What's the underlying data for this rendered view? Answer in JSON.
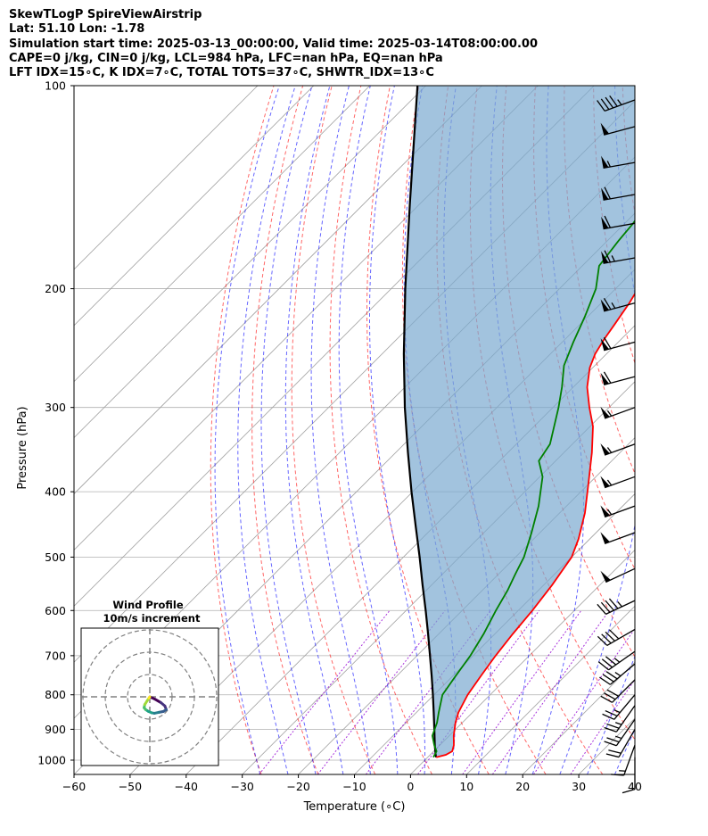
{
  "header": {
    "line1": "SkewTLogP SpireViewAirstrip",
    "line2": "Lat: 51.10   Lon: -1.78",
    "line3": "Simulation start time: 2025-03-13_00:00:00, Valid time: 2025-03-14T08:00:00.00",
    "line4": "CAPE=0 j/kg, CIN=0 j/kg, LCL=984 hPa, LFC=nan hPa, EQ=nan hPa",
    "line5": "LFT IDX=15∘C, K IDX=7∘C, TOTAL TOTS=37∘C, SHWTR_IDX=13∘C"
  },
  "colors": {
    "temperature": "#ff0000",
    "dewpoint": "#008000",
    "parcel": "#000000",
    "cape_fill": "#7aaad0",
    "dry_adiabat": "#ff0000",
    "moist_adiabat": "#0000ff",
    "isotherm": "#a0a0a0",
    "mixing_ratio": "#9400d3"
  },
  "chart_data": {
    "type": "line",
    "xlabel": "Temperature (∘C)",
    "ylabel": "Pressure (hPa)",
    "xlim": [
      -60,
      40
    ],
    "ylim": [
      1050,
      100
    ],
    "y_scale": "log",
    "grid": true,
    "x_ticks": [
      -60,
      -50,
      -40,
      -30,
      -20,
      -10,
      0,
      10,
      20,
      30,
      40
    ],
    "x_tick_labels": [
      "−60",
      "−50",
      "−40",
      "−30",
      "−20",
      "−10",
      "0",
      "10",
      "20",
      "30",
      "40"
    ],
    "y_ticks": [
      1000,
      900,
      800,
      700,
      600,
      500,
      400,
      300,
      200,
      100
    ],
    "y_tick_labels": [
      "1000",
      "900",
      "800",
      "700",
      "600",
      "500",
      "400",
      "300",
      "200",
      "100"
    ],
    "series": [
      {
        "key": "temperature",
        "pressure": [
          990,
          982,
          970,
          950,
          920,
          880,
          850,
          800,
          750,
          700,
          650,
          600,
          550,
          500,
          470,
          430,
          390,
          350,
          320,
          300,
          280,
          262,
          250,
          238,
          226,
          210,
          200,
          185,
          170,
          160,
          150,
          140,
          130,
          120,
          110,
          100
        ],
        "temp": [
          1.5,
          2.8,
          3.3,
          2.5,
          0.8,
          -1.2,
          -2.5,
          -4.0,
          -5.0,
          -6.0,
          -6.8,
          -7.5,
          -8.5,
          -10.0,
          -12.0,
          -15.5,
          -20.0,
          -25.0,
          -29.5,
          -33.5,
          -37.5,
          -40.5,
          -42.0,
          -43.0,
          -43.8,
          -45.0,
          -46.0,
          -47.5,
          -49.0,
          -50.5,
          -52.5,
          -55.0,
          -58.0,
          -61.5,
          -65.5,
          -70.0
        ]
      },
      {
        "key": "dewpoint",
        "pressure": [
          990,
          970,
          950,
          920,
          880,
          850,
          800,
          750,
          700,
          650,
          600,
          560,
          530,
          500,
          460,
          420,
          380,
          360,
          340,
          300,
          280,
          260,
          240,
          220,
          200,
          185,
          170,
          160,
          150,
          140,
          130,
          120,
          110,
          100
        ],
        "temp": [
          1.0,
          0.5,
          -1.0,
          -3.0,
          -4.5,
          -6.0,
          -8.5,
          -9.5,
          -10.5,
          -12.0,
          -14.0,
          -15.5,
          -17.0,
          -18.5,
          -21.5,
          -25.0,
          -29.5,
          -33.0,
          -34.0,
          -39.0,
          -42.0,
          -45.5,
          -48.0,
          -50.5,
          -53.5,
          -57.0,
          -58.0,
          -58.5,
          -59.5,
          -61.5,
          -65.0,
          -69.0,
          -74.0,
          -79.0
        ]
      },
      {
        "key": "parcel",
        "pressure": [
          990,
          984,
          950,
          900,
          850,
          800,
          750,
          700,
          650,
          600,
          550,
          500,
          450,
          400,
          350,
          300,
          250,
          200,
          150,
          100
        ],
        "temp": [
          1.5,
          1.1,
          -0.9,
          -3.8,
          -6.9,
          -10.2,
          -13.8,
          -17.7,
          -21.9,
          -26.5,
          -31.6,
          -37.1,
          -43.3,
          -50.2,
          -57.8,
          -66.4,
          -76.1,
          -87.5,
          -101.7,
          -121.5
        ]
      }
    ],
    "wind_barbs": {
      "pressure": [
        990,
        950,
        900,
        870,
        830,
        800,
        760,
        720,
        690,
        640,
        580,
        520,
        460,
        420,
        380,
        340,
        300,
        270,
        240,
        210,
        180,
        160,
        145,
        130,
        115,
        105
      ],
      "speed_kt": [
        10,
        15,
        20,
        25,
        25,
        25,
        30,
        35,
        35,
        40,
        45,
        50,
        50,
        55,
        55,
        55,
        55,
        60,
        60,
        65,
        65,
        60,
        60,
        55,
        50,
        45
      ],
      "direction_deg": [
        180,
        200,
        210,
        215,
        215,
        220,
        225,
        230,
        235,
        240,
        245,
        245,
        250,
        250,
        250,
        250,
        250,
        255,
        255,
        255,
        260,
        260,
        260,
        260,
        255,
        250
      ]
    },
    "wind_profile_inset": {
      "title_line1": "Wind Profile",
      "title_line2": "10m/s increment",
      "u": [
        0.0,
        2.2,
        4.8,
        6.6,
        7.2,
        6.0,
        4.0,
        2.0,
        0.8,
        -0.6,
        -1.8,
        -2.5,
        -2.2,
        -1.2,
        -0.4,
        0.0
      ],
      "v": [
        0.0,
        -1.0,
        -2.5,
        -4.0,
        -5.6,
        -6.4,
        -6.8,
        -7.2,
        -7.0,
        -6.4,
        -5.6,
        -4.8,
        -3.4,
        -1.8,
        -0.6,
        0.0
      ]
    }
  }
}
